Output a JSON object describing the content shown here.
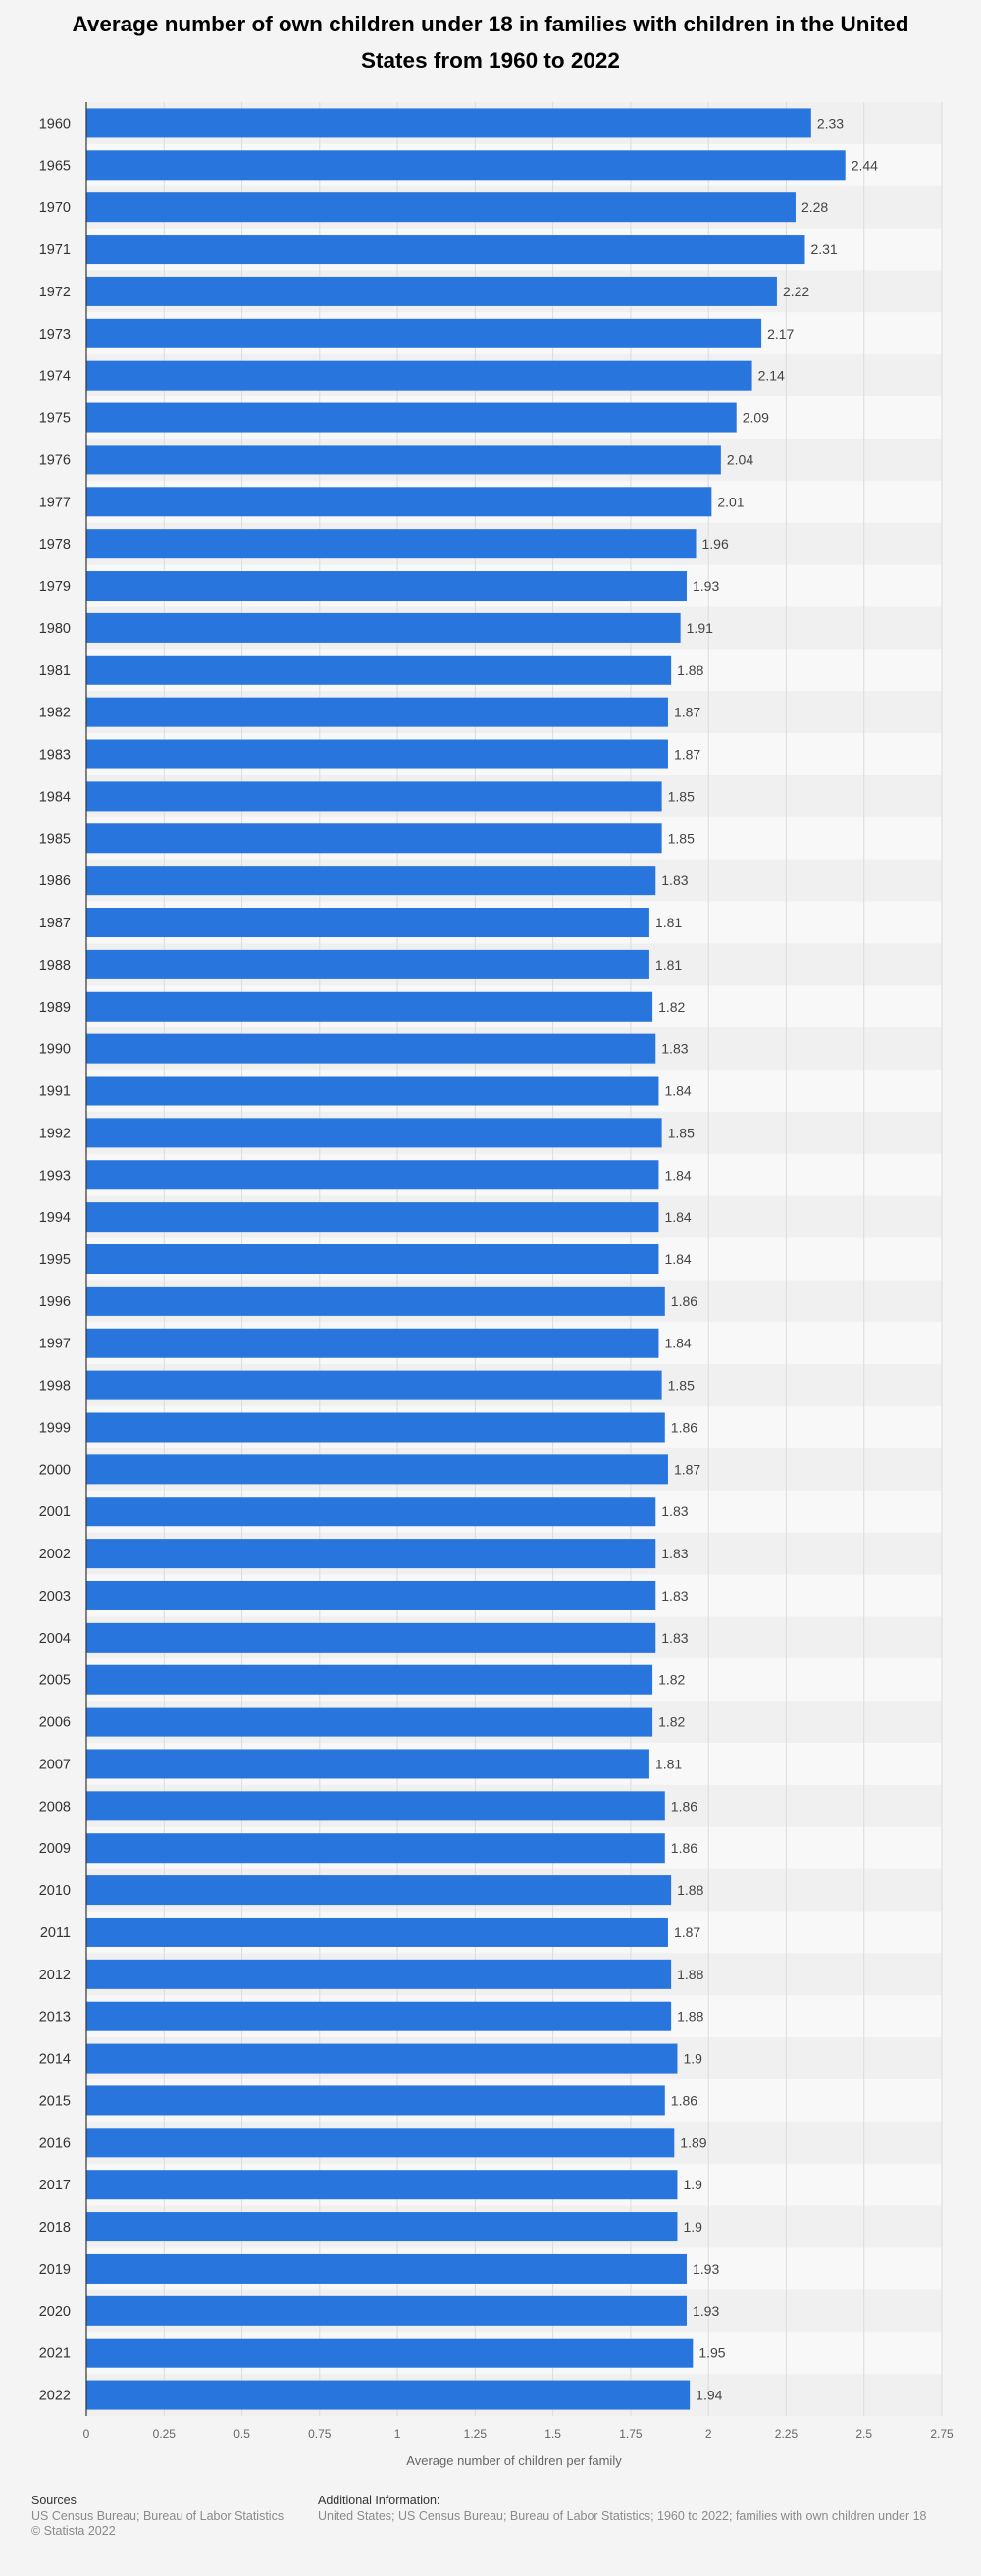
{
  "title": "Average number of own children under 18 in families with children in the United States from 1960 to 2022",
  "footer": {
    "sources_heading": "Sources",
    "sources_text": "US Census Bureau; Bureau of Labor Statistics",
    "copyright": "© Statista 2022",
    "additional_heading": "Additional Information:",
    "additional_text": "United States; US Census Bureau; Bureau of Labor Statistics; 1960 to 2022; families with own children under 18"
  },
  "colors": {
    "bar": "#2876dd",
    "band_dark": "#f0f0f0",
    "band_light": "#f8f8f8"
  },
  "chart_data": {
    "type": "bar",
    "orientation": "horizontal",
    "xlabel": "Average number of children per family",
    "xlim": [
      0,
      2.75
    ],
    "xticks": [
      "0",
      "0.25",
      "0.5",
      "0.75",
      "1",
      "1.25",
      "1.5",
      "1.75",
      "2",
      "2.25",
      "2.5",
      "2.75"
    ],
    "grid": true,
    "categories": [
      "1960",
      "1965",
      "1970",
      "1971",
      "1972",
      "1973",
      "1974",
      "1975",
      "1976",
      "1977",
      "1978",
      "1979",
      "1980",
      "1981",
      "1982",
      "1983",
      "1984",
      "1985",
      "1986",
      "1987",
      "1988",
      "1989",
      "1990",
      "1991",
      "1992",
      "1993",
      "1994",
      "1995",
      "1996",
      "1997",
      "1998",
      "1999",
      "2000",
      "2001",
      "2002",
      "2003",
      "2004",
      "2005",
      "2006",
      "2007",
      "2008",
      "2009",
      "2010",
      "2011",
      "2012",
      "2013",
      "2014",
      "2015",
      "2016",
      "2017",
      "2018",
      "2019",
      "2020",
      "2021",
      "2022"
    ],
    "values": [
      2.33,
      2.44,
      2.28,
      2.31,
      2.22,
      2.17,
      2.14,
      2.09,
      2.04,
      2.01,
      1.96,
      1.93,
      1.91,
      1.88,
      1.87,
      1.87,
      1.85,
      1.85,
      1.83,
      1.81,
      1.81,
      1.82,
      1.83,
      1.84,
      1.85,
      1.84,
      1.84,
      1.84,
      1.86,
      1.84,
      1.85,
      1.86,
      1.87,
      1.83,
      1.83,
      1.83,
      1.83,
      1.82,
      1.82,
      1.81,
      1.86,
      1.86,
      1.88,
      1.87,
      1.88,
      1.88,
      1.9,
      1.86,
      1.89,
      1.9,
      1.9,
      1.93,
      1.93,
      1.95,
      1.94
    ]
  }
}
